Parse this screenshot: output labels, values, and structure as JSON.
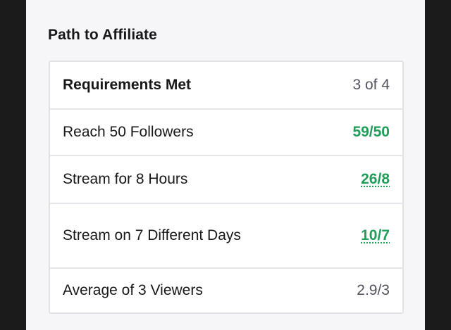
{
  "section": {
    "title": "Path to Affiliate"
  },
  "requirements": {
    "header": {
      "label": "Requirements Met",
      "value": "3 of 4"
    },
    "items": [
      {
        "label": "Reach 50 Followers",
        "value": "59/50"
      },
      {
        "label": "Stream for 8 Hours",
        "value": "26/8"
      },
      {
        "label": "Stream on 7 Different Days",
        "value": "10/7"
      },
      {
        "label": "Average of 3 Viewers",
        "value": "2.9/3"
      }
    ]
  },
  "colors": {
    "met": "#1f9e5a",
    "unmet": "#53535f",
    "panel_bg": "#f6f6f8",
    "frame_bg": "#1b1b1b"
  }
}
